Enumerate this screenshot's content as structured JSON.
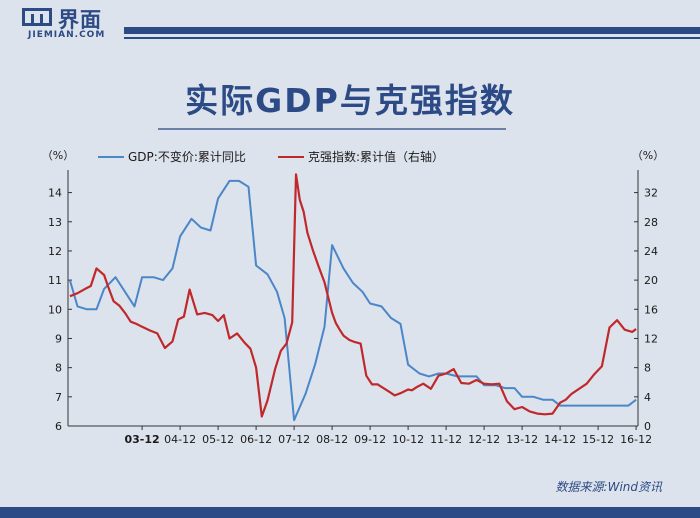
{
  "header": {
    "logo_cn": "界面",
    "logo_en": "JIEMIAN.COM"
  },
  "chart_data": {
    "type": "line",
    "title": "实际GDP与克强指数",
    "source": "数据来源:Wind资讯",
    "y_left_unit": "（%）",
    "y_right_unit": "（%）",
    "y_left_ticks": [
      "14",
      "13",
      "12",
      "11",
      "10",
      "9",
      "8",
      "7",
      "6"
    ],
    "y_right_ticks": [
      "32",
      "28",
      "24",
      "20",
      "16",
      "12",
      "8",
      "4",
      "0"
    ],
    "x_ticks": [
      "03-12",
      "04-12",
      "05-12",
      "06-12",
      "07-12",
      "08-12",
      "09-12",
      "10-12",
      "11-12",
      "12-12",
      "13-12",
      "14-12",
      "15-12",
      "16-12"
    ],
    "ylim_left": [
      6,
      14.5
    ],
    "ylim_right": [
      0,
      34
    ],
    "colors": {
      "gdp": "#4a86c8",
      "kq": "#c0292b"
    },
    "series": [
      {
        "name": "GDP:不变价:累计同比",
        "axis": "left",
        "color": "#4a86c8",
        "x": [
          2002.05,
          2002.25,
          2002.5,
          2002.75,
          2002.95,
          2003.25,
          2003.5,
          2003.75,
          2003.95,
          2004.25,
          2004.5,
          2004.75,
          2004.95,
          2005.25,
          2005.5,
          2005.75,
          2005.95,
          2006.25,
          2006.5,
          2006.75,
          2006.95,
          2007.25,
          2007.5,
          2007.7,
          2007.95,
          2008.25,
          2008.5,
          2008.75,
          2008.95,
          2009.25,
          2009.5,
          2009.75,
          2009.95,
          2010.25,
          2010.5,
          2010.75,
          2010.95,
          2011.25,
          2011.5,
          2011.75,
          2011.95,
          2012.25,
          2012.5,
          2012.75,
          2012.95,
          2013.25,
          2013.5,
          2013.75,
          2013.95,
          2014.25,
          2014.5,
          2014.75,
          2014.95,
          2015.25,
          2015.5,
          2015.75,
          2015.95,
          2016.25,
          2016.5,
          2016.75,
          2016.95
        ],
        "y": [
          11.0,
          10.1,
          10.0,
          10.0,
          10.7,
          11.1,
          10.6,
          10.1,
          11.1,
          11.1,
          11.0,
          11.4,
          12.5,
          13.1,
          12.8,
          12.7,
          13.8,
          14.4,
          14.4,
          14.2,
          11.5,
          11.2,
          10.6,
          9.7,
          6.2,
          7.1,
          8.1,
          9.4,
          12.2,
          11.4,
          10.9,
          10.6,
          10.2,
          10.1,
          9.7,
          9.5,
          8.1,
          7.8,
          7.7,
          7.8,
          7.8,
          7.7,
          7.7,
          7.7,
          7.4,
          7.4,
          7.3,
          7.3,
          7.0,
          7.0,
          6.9,
          6.9,
          6.7,
          6.7,
          6.7,
          6.7,
          6.7,
          6.7,
          6.7,
          6.7,
          6.9
        ]
      },
      {
        "name": "克强指数:累计值（右轴）",
        "axis": "right",
        "color": "#c0292b",
        "x": [
          2002.05,
          2002.25,
          2002.45,
          2002.6,
          2002.75,
          2002.95,
          2003.05,
          2003.2,
          2003.35,
          2003.5,
          2003.65,
          2003.8,
          2003.95,
          2004.15,
          2004.35,
          2004.55,
          2004.75,
          2004.9,
          2005.05,
          2005.2,
          2005.4,
          2005.6,
          2005.8,
          2005.95,
          2006.1,
          2006.25,
          2006.45,
          2006.65,
          2006.8,
          2006.95,
          2007.1,
          2007.25,
          2007.45,
          2007.6,
          2007.75,
          2007.9,
          2008.0,
          2008.1,
          2008.2,
          2008.3,
          2008.45,
          2008.6,
          2008.75,
          2008.95,
          2009.05,
          2009.15,
          2009.25,
          2009.4,
          2009.55,
          2009.7,
          2009.85,
          2010.0,
          2010.15,
          2010.3,
          2010.45,
          2010.6,
          2010.75,
          2010.95,
          2011.05,
          2011.2,
          2011.35,
          2011.55,
          2011.75,
          2011.95,
          2012.15,
          2012.35,
          2012.55,
          2012.75,
          2012.95,
          2013.15,
          2013.35,
          2013.55,
          2013.75,
          2013.95,
          2014.15,
          2014.35,
          2014.55,
          2014.75,
          2014.95,
          2015.1,
          2015.25,
          2015.45,
          2015.65,
          2015.85,
          2016.05,
          2016.25,
          2016.45,
          2016.65,
          2016.85,
          2016.95
        ],
        "y": [
          17.8,
          18.2,
          18.8,
          19.2,
          21.6,
          20.7,
          19.2,
          17.1,
          16.5,
          15.5,
          14.3,
          14.0,
          13.6,
          13.1,
          12.7,
          10.7,
          11.6,
          14.6,
          15.0,
          18.7,
          15.3,
          15.5,
          15.2,
          14.4,
          15.2,
          12.0,
          12.7,
          11.4,
          10.6,
          8.0,
          1.3,
          3.5,
          7.8,
          10.3,
          11.3,
          14.2,
          34.5,
          31.0,
          29.4,
          26.5,
          24.0,
          21.8,
          19.7,
          15.5,
          14.1,
          13.2,
          12.4,
          11.8,
          11.5,
          11.3,
          6.9,
          5.7,
          5.7,
          5.2,
          4.7,
          4.2,
          4.5,
          5.0,
          4.9,
          5.4,
          5.8,
          5.1,
          6.9,
          7.2,
          7.8,
          5.9,
          5.8,
          6.3,
          5.8,
          5.7,
          5.8,
          3.4,
          2.3,
          2.6,
          2.0,
          1.7,
          1.6,
          1.7,
          3.2,
          3.6,
          4.4,
          5.1,
          5.8,
          7.1,
          8.2,
          13.5,
          14.5,
          13.2,
          12.9,
          13.3
        ]
      }
    ]
  }
}
